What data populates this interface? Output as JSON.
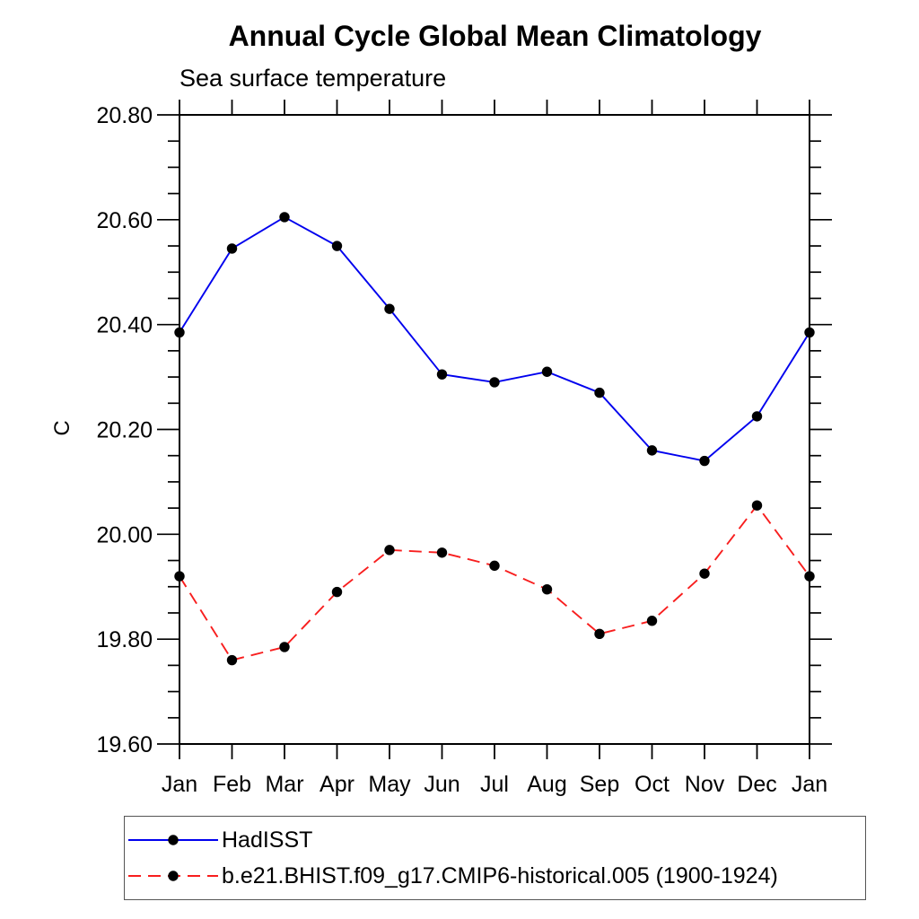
{
  "chart_data": {
    "type": "line",
    "title": "Annual Cycle Global Mean Climatology",
    "subtitle": "Sea surface temperature",
    "ylabel": "C",
    "categories": [
      "Jan",
      "Feb",
      "Mar",
      "Apr",
      "May",
      "Jun",
      "Jul",
      "Aug",
      "Sep",
      "Oct",
      "Nov",
      "Dec",
      "Jan"
    ],
    "ylim": [
      19.6,
      20.8
    ],
    "ytick_major_step": 0.2,
    "ytick_minor_step": 0.05,
    "ytick_labels": [
      "19.60",
      "19.80",
      "20.00",
      "20.20",
      "20.40",
      "20.60",
      "20.80"
    ],
    "grid": "off",
    "legend_position": "bottom-left-box",
    "axis_color": "#000000",
    "marker_color": "#000000",
    "series": [
      {
        "name": "HadISST",
        "color": "#0000ee",
        "line_style": "solid",
        "marker": "filled-circle",
        "values": [
          20.385,
          20.545,
          20.605,
          20.55,
          20.43,
          20.305,
          20.29,
          20.31,
          20.27,
          20.16,
          20.14,
          20.225,
          20.385
        ]
      },
      {
        "name": "b.e21.BHIST.f09_g17.CMIP6-historical.005 (1900-1924)",
        "color": "#f81e1e",
        "line_style": "dashed",
        "marker": "filled-circle",
        "values": [
          19.92,
          19.76,
          19.785,
          19.89,
          19.97,
          19.965,
          19.94,
          19.895,
          19.81,
          19.835,
          19.925,
          20.055,
          19.92
        ]
      }
    ]
  }
}
